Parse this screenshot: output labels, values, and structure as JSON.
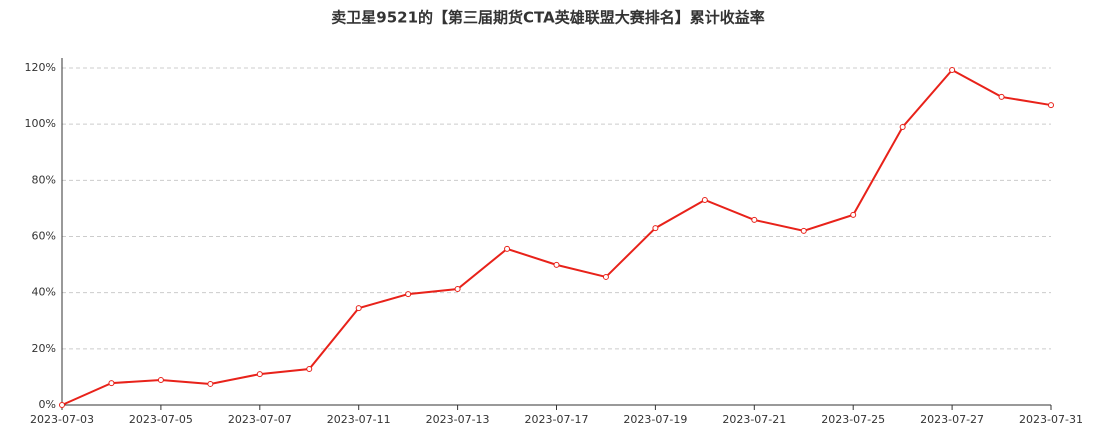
{
  "chart_data": {
    "type": "line",
    "title": "卖卫星9521的【第三届期货CTA英雄联盟大赛排名】累计收益率",
    "categories": [
      "2023-07-03",
      null,
      "2023-07-05",
      null,
      "2023-07-07",
      null,
      "2023-07-11",
      null,
      "2023-07-13",
      null,
      "2023-07-17",
      null,
      "2023-07-19",
      null,
      "2023-07-21",
      null,
      "2023-07-25",
      null,
      "2023-07-27",
      null,
      "2023-07-31"
    ],
    "series": [
      {
        "color": "#e8221a",
        "values": [
          0,
          7.8,
          8.9,
          7.5,
          11,
          12.8,
          34.5,
          39.5,
          41.3,
          55.6,
          49.9,
          45.6,
          63,
          73,
          65.9,
          62,
          67.7,
          99,
          119.3,
          109.7,
          106.8
        ]
      }
    ],
    "ylim": [
      0,
      120
    ],
    "yticks": [
      {
        "value": 0,
        "label": "0%"
      },
      {
        "value": 20,
        "label": "20%"
      },
      {
        "value": 40,
        "label": "40%"
      },
      {
        "value": 60,
        "label": "60%"
      },
      {
        "value": 80,
        "label": "80%"
      },
      {
        "value": 100,
        "label": "100%"
      },
      {
        "value": 120,
        "label": "120%"
      }
    ],
    "grid": true
  }
}
